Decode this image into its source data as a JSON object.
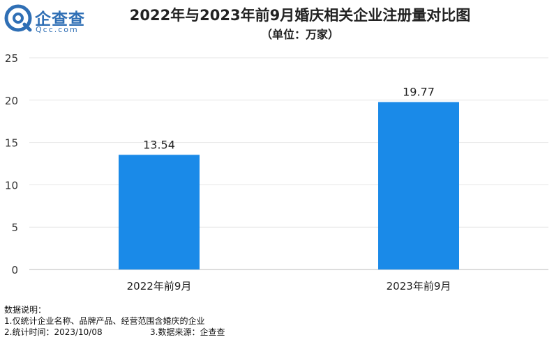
{
  "brand": {
    "name": "企查查",
    "domain": "Qcc.com",
    "color": "#2f6fb5"
  },
  "chart_data": {
    "type": "bar",
    "title": "2022年与2023年前9月婚庆相关企业注册量对比图",
    "subtitle": "（单位：万家）",
    "categories": [
      "2022年前9月",
      "2023年前9月"
    ],
    "values": [
      13.54,
      19.77
    ],
    "value_labels": [
      "13.54",
      "19.77"
    ],
    "ylim": [
      0,
      25
    ],
    "yticks": [
      "0",
      "5",
      "10",
      "15",
      "20",
      "25"
    ],
    "grid": true,
    "bar_color": "#1a8ae8"
  },
  "notes": {
    "heading": "数据说明：",
    "line1": "1.仅统计企业名称、品牌产品、经营范围含婚庆的企业",
    "line2": "2.统计时间：2023/10/08",
    "line3": "3.数据来源：企查查"
  }
}
